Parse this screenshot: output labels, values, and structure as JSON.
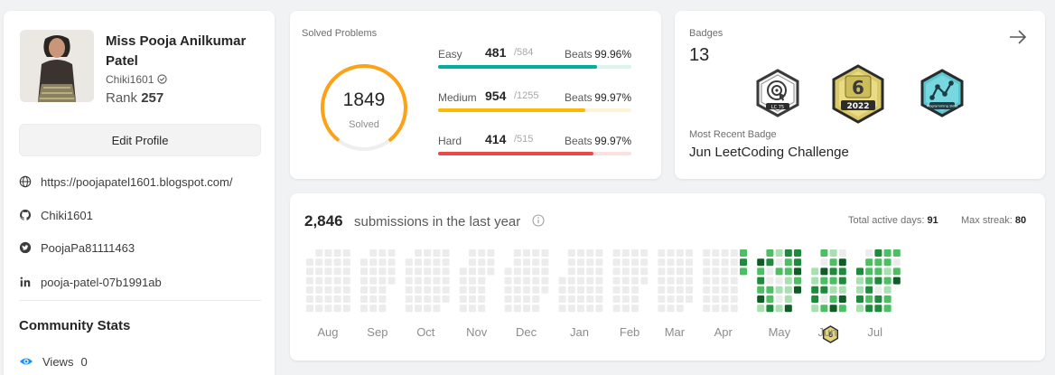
{
  "profile": {
    "name": "Miss Pooja Anilkumar Patel",
    "username": "Chiki1601",
    "rank_label": "Rank",
    "rank": "257",
    "edit_label": "Edit Profile",
    "links": [
      {
        "icon": "globe-icon",
        "text": "https://poojapatel1601.blogspot.com/"
      },
      {
        "icon": "github-icon",
        "text": "Chiki1601"
      },
      {
        "icon": "twitter-icon",
        "text": "PoojaPa81111463"
      },
      {
        "icon": "linkedin-icon",
        "text": "pooja-patel-07b1991ab"
      }
    ],
    "community_title": "Community Stats",
    "views_label": "Views",
    "views": "0"
  },
  "solved": {
    "title": "Solved Problems",
    "total": "1849",
    "total_label": "Solved",
    "ring_color": "#ffa116",
    "ring_fraction": 0.78,
    "difficulties": [
      {
        "name": "Easy",
        "solved": "481",
        "total": "/584",
        "beats_label": "Beats",
        "beats": "99.96%",
        "fraction": 0.824,
        "color": "#00af9b",
        "track": "#dcf3ee"
      },
      {
        "name": "Medium",
        "solved": "954",
        "total": "/1255",
        "beats_label": "Beats",
        "beats": "99.97%",
        "fraction": 0.76,
        "color": "#ffb800",
        "track": "#fff3d6"
      },
      {
        "name": "Hard",
        "solved": "414",
        "total": "/515",
        "beats_label": "Beats",
        "beats": "99.97%",
        "fraction": 0.804,
        "color": "#ef4743",
        "track": "#fbe1e0"
      }
    ]
  },
  "badges": {
    "title": "Badges",
    "count": "13",
    "items": [
      {
        "name": "lc75-badge-icon",
        "label": "LC 75"
      },
      {
        "name": "annual-2022-badge-icon",
        "label": "2022",
        "digit": "6"
      },
      {
        "name": "programming-skills-badge-icon",
        "label": "Programming Skills"
      }
    ],
    "recent_label": "Most Recent Badge",
    "recent": "Jun LeetCoding Challenge"
  },
  "submissions": {
    "count": "2,846",
    "text": "submissions in the last year",
    "active_days_label": "Total active days:",
    "active_days": "91",
    "max_streak_label": "Max streak:",
    "max_streak": "80",
    "months": [
      "Aug",
      "Sep",
      "Oct",
      "Nov",
      "Dec",
      "Jan",
      "Feb",
      "Mar",
      "Apr",
      "May",
      "Jun",
      "Jul"
    ],
    "palette": {
      "empty": "#ececec",
      "l1": "#a8e0b1",
      "l2": "#4bbf61",
      "l3": "#1e8a3c",
      "l4": "#0f5c27"
    },
    "badge_month": "Jun",
    "badge_digit": "6"
  }
}
